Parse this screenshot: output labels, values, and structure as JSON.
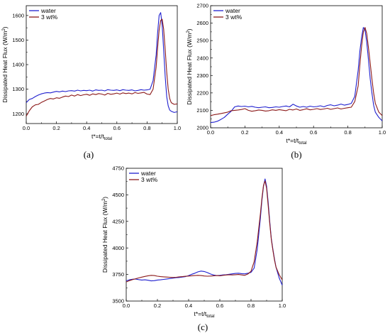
{
  "chart_data": [
    {
      "type": "line",
      "panel_label": "(a)",
      "xlabel": "t*=t/t",
      "xlabel_sub": "total",
      "ylabel": "Dissipated Heat Flux (W/m",
      "ylabel_sup": "2",
      "ylabel_end": ")",
      "xlim": [
        0.0,
        1.0
      ],
      "ylim": [
        1160,
        1640
      ],
      "xticks": [
        "0.0",
        "0.2",
        "0.4",
        "0.6",
        "0.8",
        "1.0"
      ],
      "yticks": [
        "1200",
        "1300",
        "1400",
        "1500",
        "1600"
      ],
      "legend_position": "top-left",
      "series": [
        {
          "name": "water",
          "color": "#1f1fcf",
          "x": [
            0.0,
            0.02,
            0.04,
            0.06,
            0.08,
            0.1,
            0.12,
            0.14,
            0.16,
            0.18,
            0.2,
            0.22,
            0.24,
            0.26,
            0.28,
            0.3,
            0.32,
            0.34,
            0.36,
            0.38,
            0.4,
            0.42,
            0.44,
            0.46,
            0.48,
            0.5,
            0.52,
            0.54,
            0.56,
            0.58,
            0.6,
            0.62,
            0.64,
            0.66,
            0.68,
            0.7,
            0.72,
            0.74,
            0.76,
            0.78,
            0.8,
            0.82,
            0.84,
            0.86,
            0.87,
            0.88,
            0.89,
            0.9,
            0.91,
            0.92,
            0.93,
            0.94,
            0.95,
            0.96,
            0.98,
            1.0
          ],
          "y": [
            1245,
            1258,
            1262,
            1270,
            1276,
            1281,
            1284,
            1286,
            1285,
            1288,
            1291,
            1289,
            1292,
            1290,
            1293,
            1294,
            1292,
            1296,
            1293,
            1295,
            1294,
            1296,
            1292,
            1297,
            1295,
            1296,
            1293,
            1298,
            1296,
            1295,
            1297,
            1294,
            1298,
            1296,
            1295,
            1297,
            1293,
            1295,
            1298,
            1296,
            1297,
            1300,
            1335,
            1440,
            1530,
            1600,
            1612,
            1560,
            1460,
            1350,
            1270,
            1232,
            1215,
            1210,
            1205,
            1208
          ]
        },
        {
          "name": "3 wt%",
          "color": "#8c1a1a",
          "x": [
            0.0,
            0.02,
            0.04,
            0.06,
            0.08,
            0.1,
            0.12,
            0.14,
            0.16,
            0.18,
            0.2,
            0.22,
            0.24,
            0.26,
            0.28,
            0.3,
            0.32,
            0.34,
            0.36,
            0.38,
            0.4,
            0.42,
            0.44,
            0.46,
            0.48,
            0.5,
            0.52,
            0.54,
            0.56,
            0.58,
            0.6,
            0.62,
            0.64,
            0.66,
            0.68,
            0.7,
            0.72,
            0.74,
            0.76,
            0.78,
            0.8,
            0.82,
            0.84,
            0.86,
            0.87,
            0.88,
            0.89,
            0.9,
            0.91,
            0.92,
            0.93,
            0.94,
            0.95,
            0.96,
            0.98,
            1.0
          ],
          "y": [
            1190,
            1212,
            1228,
            1236,
            1238,
            1246,
            1252,
            1258,
            1262,
            1260,
            1265,
            1263,
            1268,
            1272,
            1270,
            1276,
            1272,
            1278,
            1274,
            1277,
            1279,
            1275,
            1281,
            1278,
            1282,
            1280,
            1276,
            1283,
            1279,
            1281,
            1284,
            1280,
            1285,
            1282,
            1284,
            1281,
            1286,
            1283,
            1285,
            1287,
            1280,
            1278,
            1300,
            1390,
            1470,
            1540,
            1580,
            1585,
            1545,
            1460,
            1370,
            1300,
            1262,
            1245,
            1238,
            1240
          ]
        }
      ]
    },
    {
      "type": "line",
      "panel_label": "(b)",
      "xlabel": "t*=t/t",
      "xlabel_sub": "total",
      "ylabel": "Dissipated Heat Flux (W/m",
      "ylabel_sup": "2",
      "ylabel_end": ")",
      "xlim": [
        0.0,
        1.0
      ],
      "ylim": [
        2000,
        2700
      ],
      "xticks": [
        "0.0",
        "0.2",
        "0.4",
        "0.6",
        "0.8",
        "1.0"
      ],
      "yticks": [
        "2000",
        "2100",
        "2200",
        "2300",
        "2400",
        "2500",
        "2600",
        "2700"
      ],
      "legend_position": "top-left",
      "series": [
        {
          "name": "water",
          "color": "#1f1fcf",
          "x": [
            0.0,
            0.02,
            0.04,
            0.06,
            0.08,
            0.1,
            0.12,
            0.14,
            0.16,
            0.18,
            0.2,
            0.22,
            0.24,
            0.26,
            0.28,
            0.3,
            0.32,
            0.34,
            0.36,
            0.38,
            0.4,
            0.42,
            0.44,
            0.46,
            0.48,
            0.5,
            0.52,
            0.54,
            0.56,
            0.58,
            0.6,
            0.62,
            0.64,
            0.66,
            0.68,
            0.7,
            0.72,
            0.74,
            0.76,
            0.78,
            0.8,
            0.82,
            0.84,
            0.86,
            0.87,
            0.88,
            0.89,
            0.9,
            0.91,
            0.92,
            0.93,
            0.94,
            0.95,
            0.96,
            0.98,
            1.0
          ],
          "y": [
            2030,
            2032,
            2038,
            2048,
            2060,
            2078,
            2095,
            2120,
            2125,
            2122,
            2124,
            2120,
            2123,
            2118,
            2115,
            2118,
            2120,
            2115,
            2117,
            2120,
            2118,
            2122,
            2125,
            2120,
            2135,
            2125,
            2118,
            2122,
            2118,
            2124,
            2120,
            2122,
            2126,
            2120,
            2128,
            2132,
            2126,
            2130,
            2136,
            2130,
            2134,
            2140,
            2180,
            2330,
            2440,
            2520,
            2575,
            2560,
            2490,
            2390,
            2280,
            2200,
            2130,
            2090,
            2060,
            2040
          ]
        },
        {
          "name": "3 wt%",
          "color": "#8c1a1a",
          "x": [
            0.0,
            0.02,
            0.04,
            0.06,
            0.08,
            0.1,
            0.12,
            0.14,
            0.16,
            0.18,
            0.2,
            0.22,
            0.24,
            0.26,
            0.28,
            0.3,
            0.32,
            0.34,
            0.36,
            0.38,
            0.4,
            0.42,
            0.44,
            0.46,
            0.48,
            0.5,
            0.52,
            0.54,
            0.56,
            0.58,
            0.6,
            0.62,
            0.64,
            0.66,
            0.68,
            0.7,
            0.72,
            0.74,
            0.76,
            0.78,
            0.8,
            0.82,
            0.84,
            0.86,
            0.87,
            0.88,
            0.89,
            0.9,
            0.91,
            0.92,
            0.93,
            0.94,
            0.95,
            0.96,
            0.98,
            1.0
          ],
          "y": [
            2070,
            2075,
            2078,
            2082,
            2086,
            2090,
            2098,
            2100,
            2102,
            2105,
            2110,
            2100,
            2095,
            2098,
            2102,
            2100,
            2096,
            2098,
            2103,
            2100,
            2104,
            2101,
            2098,
            2106,
            2102,
            2108,
            2100,
            2104,
            2109,
            2103,
            2106,
            2110,
            2105,
            2108,
            2112,
            2106,
            2110,
            2114,
            2108,
            2112,
            2115,
            2118,
            2150,
            2240,
            2360,
            2470,
            2550,
            2575,
            2540,
            2460,
            2370,
            2280,
            2200,
            2140,
            2090,
            2070
          ]
        }
      ]
    },
    {
      "type": "line",
      "panel_label": "(c)",
      "xlabel": "t*=t/t",
      "xlabel_sub": "total",
      "ylabel": "Dissipated Heat Flux (W/m",
      "ylabel_sup": "2",
      "ylabel_end": ")",
      "xlim": [
        0.0,
        1.0
      ],
      "ylim": [
        3500,
        4750
      ],
      "xticks": [
        "0.0",
        "0.2",
        "0.4",
        "0.6",
        "0.8",
        "1.0"
      ],
      "yticks": [
        "3500",
        "3750",
        "4000",
        "4250",
        "4500",
        "4750"
      ],
      "legend_position": "top-left",
      "series": [
        {
          "name": "water",
          "color": "#1f1fcf",
          "x": [
            0.0,
            0.02,
            0.04,
            0.06,
            0.08,
            0.1,
            0.12,
            0.14,
            0.16,
            0.18,
            0.2,
            0.22,
            0.24,
            0.26,
            0.28,
            0.3,
            0.32,
            0.34,
            0.36,
            0.38,
            0.4,
            0.42,
            0.44,
            0.46,
            0.48,
            0.5,
            0.52,
            0.54,
            0.56,
            0.58,
            0.6,
            0.62,
            0.64,
            0.66,
            0.68,
            0.7,
            0.72,
            0.74,
            0.76,
            0.78,
            0.8,
            0.82,
            0.84,
            0.86,
            0.87,
            0.88,
            0.89,
            0.9,
            0.91,
            0.92,
            0.93,
            0.94,
            0.95,
            0.96,
            0.98,
            1.0
          ],
          "y": [
            3690,
            3700,
            3705,
            3708,
            3702,
            3698,
            3700,
            3696,
            3690,
            3692,
            3698,
            3700,
            3704,
            3708,
            3712,
            3716,
            3720,
            3722,
            3726,
            3730,
            3740,
            3752,
            3762,
            3775,
            3782,
            3778,
            3768,
            3755,
            3745,
            3740,
            3742,
            3746,
            3748,
            3752,
            3756,
            3760,
            3762,
            3758,
            3756,
            3762,
            3770,
            3810,
            3990,
            4280,
            4450,
            4580,
            4650,
            4580,
            4430,
            4250,
            4090,
            3990,
            3900,
            3820,
            3720,
            3650
          ]
        },
        {
          "name": "3 wt%",
          "color": "#8c1a1a",
          "x": [
            0.0,
            0.02,
            0.04,
            0.06,
            0.08,
            0.1,
            0.12,
            0.14,
            0.16,
            0.18,
            0.2,
            0.22,
            0.24,
            0.26,
            0.28,
            0.3,
            0.32,
            0.34,
            0.36,
            0.38,
            0.4,
            0.42,
            0.44,
            0.46,
            0.48,
            0.5,
            0.52,
            0.54,
            0.56,
            0.58,
            0.6,
            0.62,
            0.64,
            0.66,
            0.68,
            0.7,
            0.72,
            0.74,
            0.76,
            0.78,
            0.8,
            0.82,
            0.84,
            0.86,
            0.87,
            0.88,
            0.89,
            0.9,
            0.91,
            0.92,
            0.93,
            0.94,
            0.95,
            0.96,
            0.98,
            1.0
          ],
          "y": [
            3680,
            3692,
            3702,
            3710,
            3718,
            3725,
            3732,
            3738,
            3742,
            3740,
            3734,
            3730,
            3728,
            3726,
            3724,
            3722,
            3724,
            3728,
            3730,
            3733,
            3735,
            3738,
            3740,
            3742,
            3740,
            3736,
            3734,
            3735,
            3738,
            3740,
            3738,
            3742,
            3745,
            3748,
            3746,
            3748,
            3750,
            3746,
            3742,
            3755,
            3780,
            3870,
            4060,
            4320,
            4470,
            4590,
            4630,
            4560,
            4400,
            4230,
            4080,
            3980,
            3890,
            3820,
            3750,
            3700
          ]
        }
      ]
    }
  ]
}
